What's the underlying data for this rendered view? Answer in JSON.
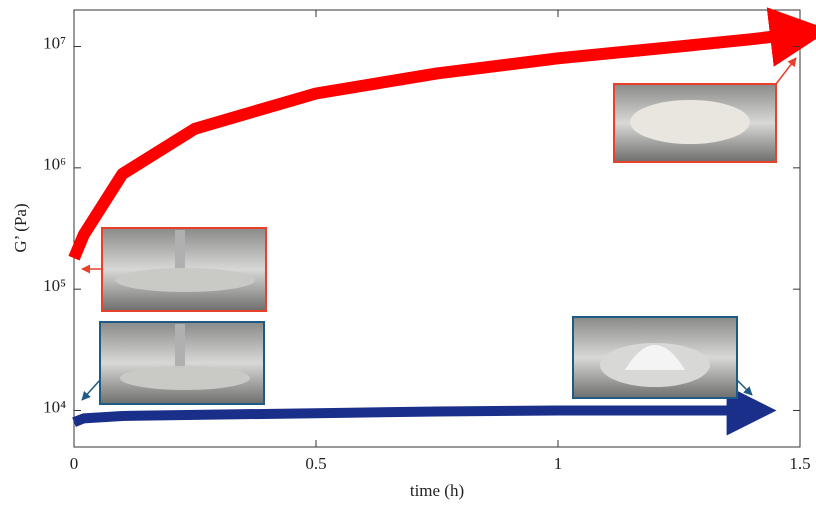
{
  "chart_data": {
    "type": "line",
    "xlabel": "time (h)",
    "ylabel": "G’ (Pa)",
    "x": [
      0,
      0.02,
      0.1,
      0.25,
      0.5,
      0.75,
      1.0,
      1.25,
      1.4,
      1.5
    ],
    "series": [
      {
        "color": "#ff0000",
        "values": [
          180000,
          280000,
          890000,
          2100000,
          4100000,
          6000000,
          8000000,
          10000000,
          11500000,
          12800000
        ]
      },
      {
        "color": "#1a2f8a",
        "values": [
          8000,
          8600,
          9000,
          9200,
          9500,
          9800,
          10000,
          10000,
          10000,
          null
        ]
      }
    ],
    "xlim": [
      0,
      1.5
    ],
    "xticks": [
      0,
      0.5,
      1,
      1.5
    ],
    "ylim": [
      5000,
      20000000
    ],
    "log_y": true,
    "yticks": [
      {
        "value": 10000,
        "label": "10⁴"
      },
      {
        "value": 100000,
        "label": "10⁵"
      },
      {
        "value": 1000000,
        "label": "10⁶"
      },
      {
        "value": 10000000,
        "label": "10⁷"
      }
    ]
  }
}
